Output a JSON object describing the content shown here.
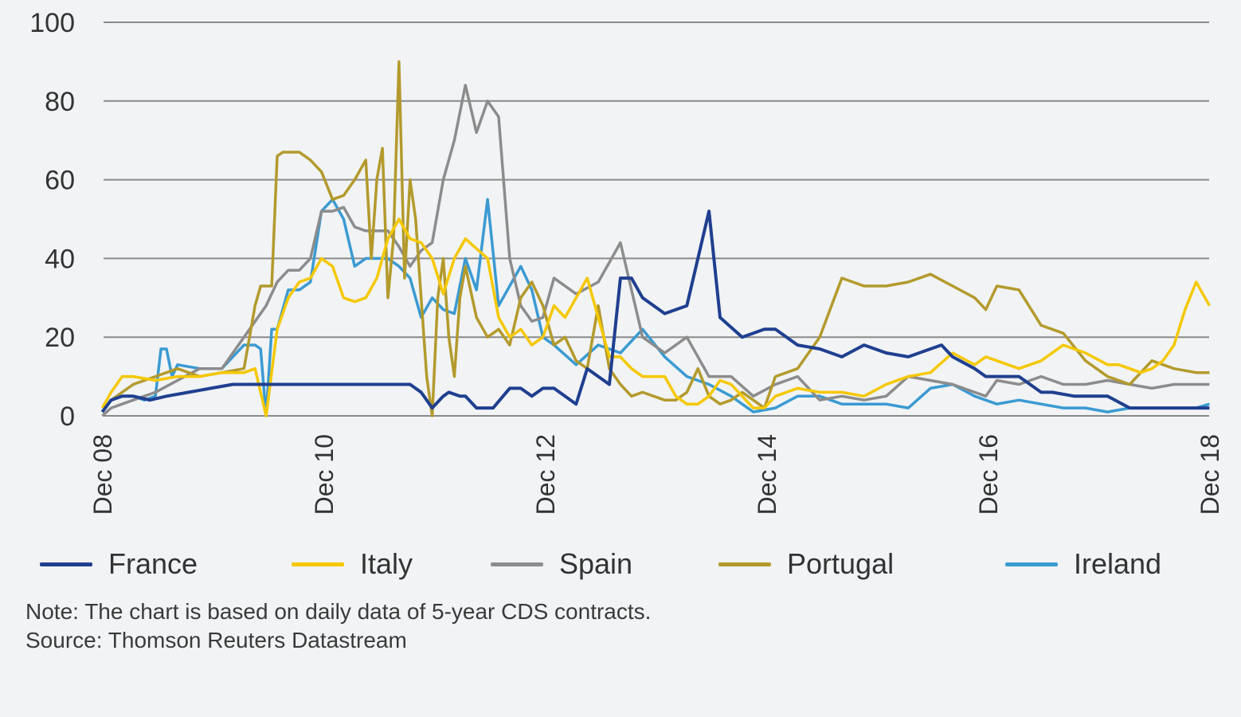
{
  "chart_data": {
    "type": "line",
    "title": "",
    "xlabel": "",
    "ylabel": "",
    "ylim": [
      0,
      100
    ],
    "yticks": [
      "0",
      "20",
      "40",
      "60",
      "80",
      "100"
    ],
    "xlim": [
      2008.917,
      2018.917
    ],
    "xticks": [
      {
        "label": "Dec 08",
        "x": 2008.917
      },
      {
        "label": "Dec 10",
        "x": 2010.917
      },
      {
        "label": "Dec 12",
        "x": 2012.917
      },
      {
        "label": "Dec 14",
        "x": 2014.917
      },
      {
        "label": "Dec 16",
        "x": 2016.917
      },
      {
        "label": "Dec 18",
        "x": 2018.917
      }
    ],
    "grid": true,
    "legend_position": "bottom",
    "series": [
      {
        "name": "France",
        "color": "#1f3f8f",
        "x": [
          2008.92,
          2009.0,
          2009.1,
          2009.2,
          2009.35,
          2009.5,
          2009.7,
          2009.9,
          2010.1,
          2010.3,
          2010.4,
          2010.5,
          2010.7,
          2010.85,
          2011.0,
          2011.2,
          2011.35,
          2011.5,
          2011.6,
          2011.7,
          2011.8,
          2011.9,
          2012.0,
          2012.05,
          2012.15,
          2012.2,
          2012.3,
          2012.4,
          2012.45,
          2012.6,
          2012.7,
          2012.8,
          2012.9,
          2013.0,
          2013.2,
          2013.3,
          2013.5,
          2013.6,
          2013.7,
          2013.8,
          2014.0,
          2014.2,
          2014.4,
          2014.5,
          2014.7,
          2014.9,
          2015.0,
          2015.2,
          2015.4,
          2015.6,
          2015.8,
          2016.0,
          2016.2,
          2016.4,
          2016.5,
          2016.6,
          2016.8,
          2016.9,
          2017.0,
          2017.2,
          2017.4,
          2017.5,
          2017.7,
          2018.0,
          2018.2,
          2018.5,
          2018.8,
          2018.92
        ],
        "values": [
          1,
          4,
          5,
          5,
          4,
          5,
          6,
          7,
          8,
          8,
          8,
          8,
          8,
          8,
          8,
          8,
          8,
          8,
          8,
          8,
          6,
          2,
          5,
          6,
          5,
          5,
          2,
          2,
          2,
          7,
          7,
          5,
          7,
          7,
          3,
          12,
          8,
          35,
          35,
          30,
          26,
          28,
          52,
          25,
          20,
          22,
          22,
          18,
          17,
          15,
          18,
          16,
          15,
          17,
          18,
          15,
          12,
          10,
          10,
          10,
          6,
          6,
          5,
          5,
          2,
          2,
          2,
          2
        ]
      },
      {
        "name": "Italy",
        "color": "#f5c800",
        "x": [
          2008.92,
          2009.0,
          2009.1,
          2009.2,
          2009.4,
          2009.6,
          2009.8,
          2010.0,
          2010.2,
          2010.3,
          2010.4,
          2010.5,
          2010.6,
          2010.7,
          2010.8,
          2010.9,
          2011.0,
          2011.1,
          2011.2,
          2011.3,
          2011.4,
          2011.5,
          2011.6,
          2011.7,
          2011.8,
          2011.9,
          2012.0,
          2012.1,
          2012.2,
          2012.4,
          2012.5,
          2012.6,
          2012.7,
          2012.8,
          2012.9,
          2013.0,
          2013.1,
          2013.2,
          2013.3,
          2013.4,
          2013.5,
          2013.6,
          2013.7,
          2013.8,
          2013.9,
          2014.0,
          2014.1,
          2014.2,
          2014.3,
          2014.4,
          2014.5,
          2014.6,
          2014.7,
          2014.8,
          2014.9,
          2015.0,
          2015.2,
          2015.4,
          2015.6,
          2015.8,
          2016.0,
          2016.2,
          2016.4,
          2016.6,
          2016.8,
          2016.9,
          2017.0,
          2017.2,
          2017.4,
          2017.6,
          2017.8,
          2018.0,
          2018.1,
          2018.2,
          2018.3,
          2018.4,
          2018.5,
          2018.6,
          2018.7,
          2018.8,
          2018.92
        ],
        "values": [
          2,
          6,
          10,
          10,
          9,
          10,
          10,
          11,
          11,
          12,
          0,
          22,
          30,
          34,
          35,
          40,
          38,
          30,
          29,
          30,
          35,
          45,
          50,
          45,
          44,
          40,
          31,
          40,
          45,
          40,
          25,
          20,
          22,
          18,
          20,
          28,
          25,
          30,
          35,
          25,
          15,
          15,
          12,
          10,
          10,
          10,
          5,
          3,
          3,
          5,
          9,
          8,
          5,
          2,
          2,
          5,
          7,
          6,
          6,
          5,
          8,
          10,
          11,
          16,
          13,
          15,
          14,
          12,
          14,
          18,
          16,
          13,
          13,
          12,
          11,
          12,
          14,
          18,
          27,
          34,
          28
        ]
      },
      {
        "name": "Spain",
        "color": "#8c8c8c",
        "x": [
          2008.92,
          2009.0,
          2009.2,
          2009.4,
          2009.6,
          2009.8,
          2010.0,
          2010.2,
          2010.4,
          2010.5,
          2010.6,
          2010.7,
          2010.8,
          2010.9,
          2011.0,
          2011.1,
          2011.2,
          2011.3,
          2011.4,
          2011.5,
          2011.6,
          2011.7,
          2011.8,
          2011.9,
          2012.0,
          2012.1,
          2012.2,
          2012.3,
          2012.4,
          2012.5,
          2012.6,
          2012.7,
          2012.8,
          2012.9,
          2013.0,
          2013.2,
          2013.4,
          2013.6,
          2013.8,
          2014.0,
          2014.2,
          2014.4,
          2014.6,
          2014.8,
          2015.0,
          2015.2,
          2015.4,
          2015.6,
          2015.8,
          2016.0,
          2016.2,
          2016.4,
          2016.6,
          2016.8,
          2016.9,
          2017.0,
          2017.2,
          2017.4,
          2017.6,
          2017.8,
          2018.0,
          2018.2,
          2018.4,
          2018.6,
          2018.8,
          2018.92
        ],
        "values": [
          0,
          2,
          4,
          6,
          9,
          12,
          12,
          20,
          28,
          34,
          37,
          37,
          40,
          52,
          52,
          53,
          48,
          47,
          47,
          47,
          43,
          38,
          42,
          44,
          60,
          70,
          84,
          72,
          80,
          76,
          40,
          28,
          24,
          25,
          35,
          31,
          34,
          44,
          20,
          16,
          20,
          10,
          10,
          5,
          8,
          10,
          4,
          5,
          4,
          5,
          10,
          9,
          8,
          6,
          5,
          9,
          8,
          10,
          8,
          8,
          9,
          8,
          7,
          8,
          8,
          8
        ]
      },
      {
        "name": "Portugal",
        "color": "#b39a2c",
        "x": [
          2008.92,
          2009.0,
          2009.2,
          2009.4,
          2009.6,
          2009.8,
          2010.0,
          2010.2,
          2010.3,
          2010.35,
          2010.45,
          2010.5,
          2010.55,
          2010.6,
          2010.7,
          2010.8,
          2010.9,
          2011.0,
          2011.1,
          2011.2,
          2011.3,
          2011.35,
          2011.4,
          2011.45,
          2011.5,
          2011.55,
          2011.6,
          2011.65,
          2011.7,
          2011.75,
          2011.8,
          2011.85,
          2011.9,
          2011.95,
          2012.0,
          2012.05,
          2012.1,
          2012.15,
          2012.2,
          2012.3,
          2012.4,
          2012.5,
          2012.6,
          2012.7,
          2012.8,
          2012.9,
          2013.0,
          2013.1,
          2013.2,
          2013.3,
          2013.4,
          2013.5,
          2013.6,
          2013.7,
          2013.8,
          2013.9,
          2014.0,
          2014.1,
          2014.2,
          2014.3,
          2014.4,
          2014.5,
          2014.6,
          2014.7,
          2014.8,
          2014.9,
          2015.0,
          2015.2,
          2015.4,
          2015.6,
          2015.8,
          2016.0,
          2016.2,
          2016.4,
          2016.6,
          2016.8,
          2016.9,
          2017.0,
          2017.2,
          2017.4,
          2017.6,
          2017.8,
          2018.0,
          2018.2,
          2018.4,
          2018.6,
          2018.8,
          2018.92
        ],
        "values": [
          1,
          4,
          8,
          10,
          12,
          10,
          11,
          12,
          28,
          33,
          33,
          66,
          67,
          67,
          67,
          65,
          62,
          55,
          56,
          60,
          65,
          40,
          60,
          68,
          30,
          45,
          90,
          35,
          60,
          50,
          30,
          10,
          0,
          30,
          40,
          20,
          10,
          30,
          38,
          25,
          20,
          22,
          18,
          30,
          34,
          28,
          18,
          20,
          14,
          12,
          28,
          12,
          8,
          5,
          6,
          5,
          4,
          4,
          6,
          12,
          5,
          3,
          4,
          6,
          4,
          2,
          10,
          12,
          20,
          35,
          33,
          33,
          34,
          36,
          33,
          30,
          27,
          33,
          32,
          23,
          21,
          14,
          10,
          8,
          14,
          12,
          11,
          11
        ]
      },
      {
        "name": "Ireland",
        "color": "#3b9ad2",
        "x": [
          2008.92,
          2009.0,
          2009.1,
          2009.2,
          2009.3,
          2009.4,
          2009.45,
          2009.5,
          2009.55,
          2009.6,
          2009.8,
          2010.0,
          2010.2,
          2010.3,
          2010.35,
          2010.4,
          2010.45,
          2010.5,
          2010.6,
          2010.7,
          2010.8,
          2010.9,
          2011.0,
          2011.1,
          2011.2,
          2011.3,
          2011.4,
          2011.5,
          2011.6,
          2011.7,
          2011.8,
          2011.9,
          2012.0,
          2012.1,
          2012.2,
          2012.3,
          2012.4,
          2012.5,
          2012.6,
          2012.7,
          2012.8,
          2012.9,
          2013.0,
          2013.2,
          2013.4,
          2013.6,
          2013.8,
          2014.0,
          2014.2,
          2014.4,
          2014.6,
          2014.8,
          2015.0,
          2015.2,
          2015.4,
          2015.6,
          2015.8,
          2016.0,
          2016.2,
          2016.4,
          2016.6,
          2016.8,
          2017.0,
          2017.2,
          2017.4,
          2017.6,
          2017.8,
          2018.0,
          2018.2,
          2018.4,
          2018.6,
          2018.8,
          2018.92
        ],
        "values": [
          1,
          4,
          5,
          5,
          4,
          5,
          17,
          17,
          10,
          13,
          12,
          12,
          18,
          18,
          17,
          0,
          22,
          22,
          32,
          32,
          34,
          52,
          55,
          50,
          38,
          40,
          40,
          40,
          38,
          35,
          25,
          30,
          27,
          26,
          40,
          32,
          55,
          28,
          33,
          38,
          32,
          20,
          18,
          13,
          18,
          16,
          22,
          15,
          10,
          8,
          5,
          1,
          2,
          5,
          5,
          3,
          3,
          3,
          2,
          7,
          8,
          5,
          3,
          4,
          3,
          2,
          2,
          1,
          2,
          2,
          2,
          2,
          3
        ]
      }
    ]
  },
  "legend": {
    "items": [
      {
        "label": "France",
        "color": "#1f3f8f"
      },
      {
        "label": "Italy",
        "color": "#f5c800"
      },
      {
        "label": "Spain",
        "color": "#8c8c8c"
      },
      {
        "label": "Portugal",
        "color": "#b39a2c"
      },
      {
        "label": "Ireland",
        "color": "#3b9ad2"
      }
    ]
  },
  "notes": {
    "note": "Note: The chart is based on daily data of 5-year CDS contracts.",
    "source": "Source: Thomson Reuters Datastream"
  }
}
